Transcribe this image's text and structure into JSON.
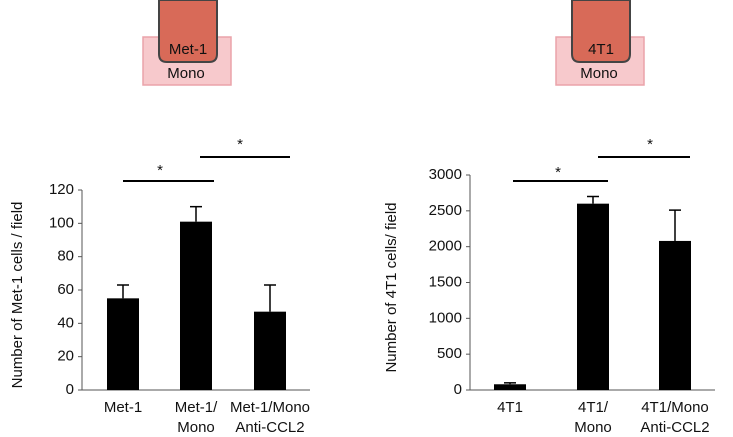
{
  "chart_data": [
    {
      "type": "bar",
      "ylabel": "Number of Met-1 cells / field",
      "inset": {
        "top": "Met-1",
        "bottom": "Mono"
      },
      "categories": [
        [
          "Met-1"
        ],
        [
          "Met-1/",
          "Mono"
        ],
        [
          "Met-1/Mono",
          "Anti-CCL2"
        ]
      ],
      "values": [
        55,
        101,
        47
      ],
      "errors": [
        8,
        9,
        16
      ],
      "color": "#000000",
      "ylim": [
        0,
        120
      ],
      "yticks": [
        0,
        20,
        40,
        60,
        80,
        100,
        120
      ],
      "annotations": [
        "*",
        "*"
      ]
    },
    {
      "type": "bar",
      "ylabel": "Number of 4T1 cells/ field",
      "inset": {
        "top": "4T1",
        "bottom": "Mono"
      },
      "categories": [
        [
          "4T1"
        ],
        [
          "4T1/",
          "Mono"
        ],
        [
          "4T1/Mono",
          "Anti-CCL2"
        ]
      ],
      "values": [
        80,
        2600,
        2080
      ],
      "errors": [
        20,
        100,
        430
      ],
      "color": "#000000",
      "ylim": [
        0,
        3000
      ],
      "yticks": [
        0,
        500,
        1000,
        1500,
        2000,
        2500,
        3000
      ],
      "annotations": [
        "*",
        "*"
      ]
    }
  ]
}
